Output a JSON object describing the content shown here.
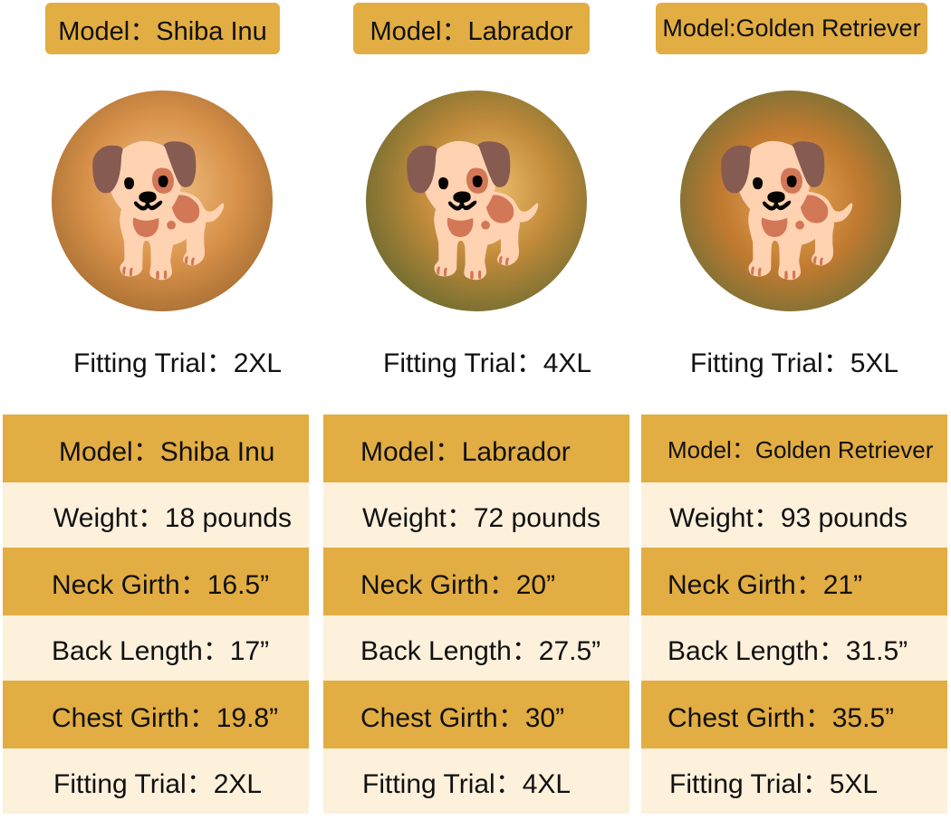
{
  "colors": {
    "header_gold": "#e2ad42",
    "row_cream": "#fdf1dc"
  },
  "models": [
    {
      "tag": "Model：Shiba Inu",
      "photo_icon": "shiba-inu-dog-photo",
      "fitting": "Fitting Trial：2XL",
      "rows": [
        "Model：Shiba Inu",
        "Weight：18 pounds",
        "Neck Girth：16.5”",
        "Back Length：17”",
        "Chest Girth：19.8”",
        "Fitting Trial：2XL"
      ]
    },
    {
      "tag": "Model：Labrador",
      "photo_icon": "labrador-dog-photo",
      "fitting": "Fitting Trial：4XL",
      "rows": [
        "Model：Labrador",
        "Weight：72 pounds",
        "Neck Girth：20”",
        "Back Length：27.5”",
        "Chest Girth：30”",
        "Fitting Trial：4XL"
      ]
    },
    {
      "tag": "Model:Golden Retriever",
      "photo_icon": "golden-retriever-dog-photo",
      "fitting": "Fitting Trial：5XL",
      "rows": [
        "Model：Golden Retriever",
        "Weight：93 pounds",
        "Neck Girth：21”",
        "Back Length：31.5”",
        "Chest Girth：35.5”",
        "Fitting Trial：5XL"
      ]
    }
  ]
}
